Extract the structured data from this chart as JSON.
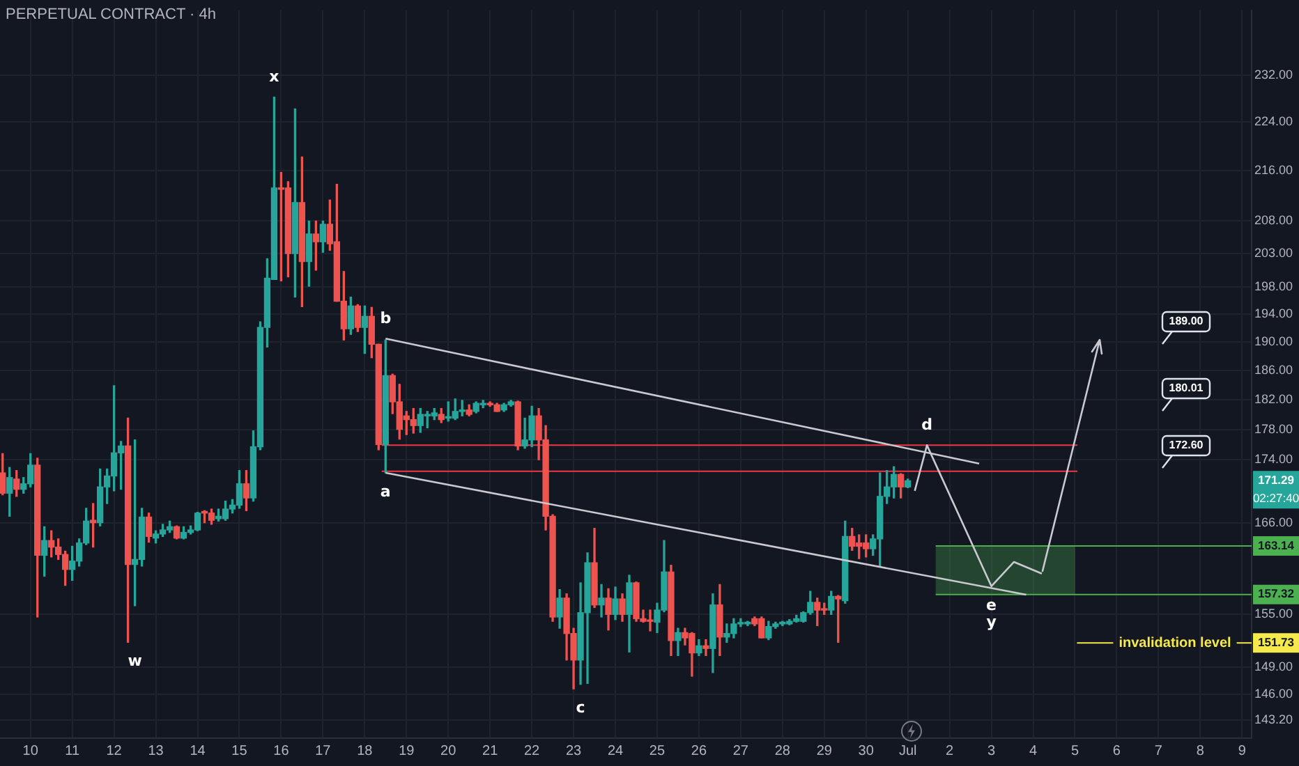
{
  "chart_data": {
    "type": "candlestick",
    "title": "PERPETUAL CONTRACT · 4h",
    "x": [
      "--06-09T08:00",
      "--06-09T12:00",
      "--06-09T16:00",
      "--06-09T20:00",
      "--06-10T00:00",
      "--06-10T04:00",
      "--06-10T08:00",
      "--06-10T12:00",
      "--06-10T16:00",
      "--06-10T20:00",
      "--06-11T00:00",
      "--06-11T04:00",
      "--06-11T08:00",
      "--06-11T12:00",
      "--06-11T16:00",
      "--06-11T20:00",
      "--06-12T00:00",
      "--06-12T04:00",
      "--06-12T08:00",
      "--06-12T12:00",
      "--06-12T16:00",
      "--06-12T20:00",
      "--06-13T00:00",
      "--06-13T04:00",
      "--06-13T08:00",
      "--06-13T12:00",
      "--06-13T16:00",
      "--06-13T20:00",
      "--06-14T00:00",
      "--06-14T04:00",
      "--06-14T08:00",
      "--06-14T12:00",
      "--06-14T16:00",
      "--06-14T20:00",
      "--06-15T00:00",
      "--06-15T04:00",
      "--06-15T08:00",
      "--06-15T12:00",
      "--06-15T16:00",
      "--06-15T20:00",
      "--06-16T00:00",
      "--06-16T04:00",
      "--06-16T08:00",
      "--06-16T12:00",
      "--06-16T16:00",
      "--06-16T20:00",
      "--06-17T00:00",
      "--06-17T04:00",
      "--06-17T08:00",
      "--06-17T12:00",
      "--06-17T16:00",
      "--06-17T20:00",
      "--06-18T00:00",
      "--06-18T04:00",
      "--06-18T08:00",
      "--06-18T12:00",
      "--06-18T16:00",
      "--06-18T20:00",
      "--06-19T00:00",
      "--06-19T04:00",
      "--06-19T08:00",
      "--06-19T12:00",
      "--06-19T16:00",
      "--06-19T20:00",
      "--06-20T00:00",
      "--06-20T04:00",
      "--06-20T08:00",
      "--06-20T12:00",
      "--06-20T16:00",
      "--06-20T20:00",
      "--06-21T00:00",
      "--06-21T04:00",
      "--06-21T08:00",
      "--06-21T12:00",
      "--06-21T16:00",
      "--06-21T20:00",
      "--06-22T00:00",
      "--06-22T04:00",
      "--06-22T08:00",
      "--06-22T12:00",
      "--06-22T16:00",
      "--06-22T20:00",
      "--06-23T00:00",
      "--06-23T04:00",
      "--06-23T08:00",
      "--06-23T12:00",
      "--06-23T16:00",
      "--06-23T20:00",
      "--06-24T00:00",
      "--06-24T04:00",
      "--06-24T08:00",
      "--06-24T12:00",
      "--06-24T16:00",
      "--06-24T20:00",
      "--06-25T00:00",
      "--06-25T04:00",
      "--06-25T08:00",
      "--06-25T12:00",
      "--06-25T16:00",
      "--06-25T20:00",
      "--06-26T00:00",
      "--06-26T04:00",
      "--06-26T08:00",
      "--06-26T12:00",
      "--06-26T16:00",
      "--06-26T20:00",
      "--06-27T00:00",
      "--06-27T04:00",
      "--06-27T08:00",
      "--06-27T12:00",
      "--06-27T16:00",
      "--06-27T20:00",
      "--06-28T00:00",
      "--06-28T04:00",
      "--06-28T08:00",
      "--06-28T12:00",
      "--06-28T16:00",
      "--06-28T20:00",
      "--06-29T00:00",
      "--06-29T04:00",
      "--06-29T08:00",
      "--06-29T12:00",
      "--06-29T16:00",
      "--06-29T20:00",
      "--06-30T00:00",
      "--06-30T04:00",
      "--06-30T08:00",
      "--06-30T12:00",
      "--06-30T16:00",
      "--06-30T20:00",
      "--07-01T00:00"
    ],
    "ohlc": [
      [
        172.3,
        174.8,
        169.5,
        169.7
      ],
      [
        169.7,
        173.0,
        166.8,
        171.7
      ],
      [
        171.5,
        172.6,
        169.3,
        170.2
      ],
      [
        170.2,
        171.7,
        169.7,
        170.9
      ],
      [
        170.9,
        174.8,
        170.5,
        173.3
      ],
      [
        173.3,
        174.2,
        154.7,
        162.0
      ],
      [
        162.0,
        165.5,
        159.5,
        163.8
      ],
      [
        163.8,
        165.0,
        161.8,
        163.0
      ],
      [
        163.0,
        164.0,
        161.5,
        162.1
      ],
      [
        162.1,
        162.5,
        158.4,
        160.3
      ],
      [
        160.3,
        163.1,
        159.0,
        161.3
      ],
      [
        161.3,
        164.0,
        160.7,
        163.5
      ],
      [
        163.5,
        167.8,
        163.3,
        166.2
      ],
      [
        166.3,
        168.4,
        163.0,
        166.0
      ],
      [
        166.0,
        172.8,
        165.6,
        170.5
      ],
      [
        170.5,
        172.8,
        168.4,
        171.9
      ],
      [
        171.9,
        183.9,
        170.0,
        174.9
      ],
      [
        174.9,
        176.4,
        170.2,
        175.8
      ],
      [
        175.8,
        179.5,
        151.8,
        160.9
      ],
      [
        160.9,
        176.6,
        156.0,
        161.5
      ],
      [
        161.5,
        167.8,
        160.7,
        166.7
      ],
      [
        166.7,
        167.2,
        163.6,
        164.3
      ],
      [
        164.1,
        165.0,
        163.5,
        164.6
      ],
      [
        164.6,
        165.8,
        164.3,
        165.1
      ],
      [
        165.1,
        166.2,
        164.8,
        165.5
      ],
      [
        165.5,
        165.6,
        164.0,
        164.1
      ],
      [
        164.1,
        165.5,
        164.0,
        164.8
      ],
      [
        164.8,
        165.6,
        164.6,
        165.1
      ],
      [
        165.1,
        167.3,
        165.0,
        167.2
      ],
      [
        167.4,
        167.5,
        166.0,
        167.2
      ],
      [
        167.2,
        167.7,
        165.8,
        166.3
      ],
      [
        166.5,
        167.7,
        166.2,
        166.8
      ],
      [
        166.5,
        168.7,
        166.3,
        167.7
      ],
      [
        167.7,
        168.9,
        167.2,
        168.2
      ],
      [
        168.2,
        172.6,
        167.8,
        170.9
      ],
      [
        170.9,
        172.6,
        167.5,
        169.1
      ],
      [
        169.1,
        177.8,
        168.7,
        175.7
      ],
      [
        175.7,
        192.9,
        175.3,
        192.1
      ],
      [
        192.1,
        202.2,
        189.3,
        199.3
      ],
      [
        199.1,
        228.2,
        199.1,
        213.2
      ],
      [
        213.2,
        215.7,
        198.9,
        213.0
      ],
      [
        213.2,
        214.2,
        199.5,
        203.0
      ],
      [
        203.0,
        226.2,
        196.5,
        210.9
      ],
      [
        210.9,
        218.2,
        195.1,
        201.8
      ],
      [
        201.8,
        208.0,
        198.1,
        206.0
      ],
      [
        206.0,
        208.0,
        200.5,
        204.8
      ],
      [
        204.8,
        208.0,
        203.2,
        207.5
      ],
      [
        207.5,
        211.3,
        203.5,
        204.5
      ],
      [
        204.8,
        213.8,
        195.9,
        195.9
      ],
      [
        195.9,
        200.3,
        190.3,
        191.9
      ],
      [
        191.9,
        196.5,
        191.1,
        195.2
      ],
      [
        195.2,
        195.4,
        191.5,
        192.1
      ],
      [
        192.1,
        195.2,
        188.4,
        193.7
      ],
      [
        193.7,
        195.0,
        187.8,
        189.7
      ],
      [
        189.7,
        189.7,
        175.3,
        176.0
      ],
      [
        176.0,
        190.3,
        172.3,
        185.3
      ],
      [
        185.3,
        185.5,
        180.1,
        181.7
      ],
      [
        181.7,
        184.1,
        176.7,
        178.0
      ],
      [
        179.8,
        180.4,
        177.3,
        179.3
      ],
      [
        179.3,
        180.8,
        177.5,
        178.5
      ],
      [
        178.5,
        180.8,
        177.6,
        180.0
      ],
      [
        179.8,
        180.4,
        178.2,
        180.0
      ],
      [
        179.8,
        180.8,
        179.3,
        180.2
      ],
      [
        180.0,
        180.8,
        178.9,
        179.3
      ],
      [
        179.5,
        181.7,
        179.1,
        179.7
      ],
      [
        179.5,
        182.1,
        179.3,
        180.4
      ],
      [
        180.4,
        181.9,
        179.8,
        180.6
      ],
      [
        180.6,
        181.3,
        179.8,
        180.0
      ],
      [
        180.4,
        181.7,
        180.2,
        181.5
      ],
      [
        181.3,
        181.9,
        180.9,
        181.5
      ],
      [
        181.5,
        181.7,
        181.1,
        181.3
      ],
      [
        181.3,
        181.5,
        180.4,
        180.4
      ],
      [
        180.6,
        181.5,
        180.4,
        181.3
      ],
      [
        181.3,
        181.9,
        181.1,
        181.7
      ],
      [
        181.7,
        181.8,
        175.3,
        175.8
      ],
      [
        175.8,
        179.5,
        175.5,
        176.6
      ],
      [
        176.6,
        181.1,
        175.7,
        179.8
      ],
      [
        179.8,
        180.8,
        174.0,
        176.6
      ],
      [
        176.6,
        178.5,
        165.1,
        166.8
      ],
      [
        166.8,
        167.0,
        154.2,
        154.7
      ],
      [
        154.7,
        157.9,
        153.4,
        156.9
      ],
      [
        156.9,
        157.4,
        149.8,
        152.8
      ],
      [
        152.8,
        153.4,
        146.6,
        149.8
      ],
      [
        149.8,
        158.7,
        147.1,
        155.2
      ],
      [
        155.2,
        162.3,
        147.2,
        161.1
      ],
      [
        161.1,
        165.3,
        155.8,
        156.1
      ],
      [
        156.1,
        158.5,
        154.7,
        156.9
      ],
      [
        156.9,
        158.0,
        153.2,
        155.0
      ],
      [
        155.0,
        158.2,
        154.4,
        156.8
      ],
      [
        156.8,
        157.4,
        154.2,
        155.0
      ],
      [
        155.0,
        159.6,
        150.7,
        158.7
      ],
      [
        158.7,
        158.8,
        154.2,
        154.5
      ],
      [
        154.5,
        155.5,
        154.1,
        154.2
      ],
      [
        154.3,
        155.5,
        153.1,
        154.2
      ],
      [
        154.1,
        156.3,
        152.9,
        155.5
      ],
      [
        155.5,
        163.8,
        155.3,
        160.0
      ],
      [
        160.0,
        160.8,
        150.3,
        152.0
      ],
      [
        152.0,
        153.4,
        150.3,
        152.9
      ],
      [
        152.9,
        153.4,
        151.5,
        152.3
      ],
      [
        152.8,
        152.9,
        148.0,
        150.6
      ],
      [
        150.6,
        152.1,
        150.3,
        151.4
      ],
      [
        151.4,
        152.1,
        150.3,
        151.1
      ],
      [
        151.1,
        157.4,
        148.4,
        156.1
      ],
      [
        156.1,
        158.5,
        150.3,
        152.4
      ],
      [
        152.4,
        153.9,
        151.8,
        152.8
      ],
      [
        152.8,
        154.5,
        152.3,
        153.9
      ],
      [
        153.9,
        154.5,
        153.6,
        154.0
      ],
      [
        153.9,
        154.2,
        153.7,
        154.1
      ],
      [
        154.5,
        154.7,
        153.7,
        153.9
      ],
      [
        154.5,
        154.7,
        152.3,
        152.3
      ],
      [
        152.3,
        154.2,
        152.1,
        153.6
      ],
      [
        153.6,
        154.1,
        153.4,
        153.9
      ],
      [
        153.9,
        154.2,
        153.7,
        154.1
      ],
      [
        153.9,
        154.4,
        153.8,
        154.2
      ],
      [
        154.2,
        154.9,
        154.1,
        154.5
      ],
      [
        154.2,
        155.3,
        154.1,
        155.2
      ],
      [
        155.2,
        157.7,
        155.0,
        156.4
      ],
      [
        156.4,
        156.9,
        153.7,
        155.5
      ],
      [
        155.6,
        156.3,
        155.0,
        155.5
      ],
      [
        155.5,
        157.7,
        155.0,
        157.1
      ],
      [
        157.1,
        157.2,
        151.8,
        156.8
      ],
      [
        156.6,
        166.2,
        156.3,
        164.3
      ],
      [
        164.3,
        165.3,
        162.6,
        163.1
      ],
      [
        163.5,
        164.5,
        161.6,
        163.1
      ],
      [
        163.5,
        164.5,
        161.8,
        162.8
      ],
      [
        162.8,
        164.5,
        162.0,
        164.0
      ],
      [
        164.0,
        172.3,
        160.7,
        169.3
      ],
      [
        169.3,
        172.6,
        168.4,
        170.5
      ],
      [
        170.5,
        173.1,
        169.1,
        172.1
      ],
      [
        172.1,
        172.2,
        169.1,
        170.5
      ],
      [
        170.5,
        171.5,
        170.4,
        171.29
      ]
    ],
    "series": [
      {
        "type": "line",
        "color": "#c8cad0",
        "x": [
          "--06-18T12:00",
          "--07-02T17:00"
        ],
        "values": [
          190.5,
          173.5
        ]
      },
      {
        "type": "line",
        "color": "#c8cad0",
        "x": [
          "--06-18T12:00",
          "--07-03T20:00"
        ],
        "values": [
          172.3,
          157.3
        ]
      },
      {
        "type": "line",
        "color": "#c8cad0",
        "x": [
          "--07-01T04:00",
          "--07-01T11:00",
          "--07-03T00:00",
          "--07-03T13:00",
          "--07-04T05:00"
        ],
        "values": [
          170.0,
          175.9,
          158.3,
          161.2,
          159.8
        ]
      }
    ],
    "marker": "none",
    "line_style": "solid",
    "log": true,
    "grid": true,
    "xlim": [
      "--06-09T06:30",
      "--07-09T05:30"
    ],
    "xticks": [
      {
        "value": "--06-10",
        "label": "10"
      },
      {
        "value": "--06-11",
        "label": "11"
      },
      {
        "value": "--06-12",
        "label": "12"
      },
      {
        "value": "--06-13",
        "label": "13"
      },
      {
        "value": "--06-14",
        "label": "14"
      },
      {
        "value": "--06-15",
        "label": "15"
      },
      {
        "value": "--06-16",
        "label": "16"
      },
      {
        "value": "--06-17",
        "label": "17"
      },
      {
        "value": "--06-18",
        "label": "18"
      },
      {
        "value": "--06-19",
        "label": "19"
      },
      {
        "value": "--06-20",
        "label": "20"
      },
      {
        "value": "--06-21",
        "label": "21"
      },
      {
        "value": "--06-22",
        "label": "22"
      },
      {
        "value": "--06-23",
        "label": "23"
      },
      {
        "value": "--06-24",
        "label": "24"
      },
      {
        "value": "--06-25",
        "label": "25"
      },
      {
        "value": "--06-26",
        "label": "26"
      },
      {
        "value": "--06-27",
        "label": "27"
      },
      {
        "value": "--06-28",
        "label": "28"
      },
      {
        "value": "--06-29",
        "label": "29"
      },
      {
        "value": "--06-30",
        "label": "30"
      },
      {
        "value": "--07-01",
        "label": "Jul"
      },
      {
        "value": "--07-02",
        "label": "2"
      },
      {
        "value": "--07-03",
        "label": "3"
      },
      {
        "value": "--07-04",
        "label": "4"
      },
      {
        "value": "--07-05",
        "label": "5"
      },
      {
        "value": "--07-06",
        "label": "6"
      },
      {
        "value": "--07-07",
        "label": "7"
      },
      {
        "value": "--07-08",
        "label": "8"
      },
      {
        "value": "--07-09",
        "label": "9"
      }
    ],
    "ylim": [
      141.3,
      243.5
    ],
    "yticks": [
      {
        "value": 143.2,
        "label": "143.20"
      },
      {
        "value": 146,
        "label": "146.00"
      },
      {
        "value": 149,
        "label": "149.00"
      },
      {
        "value": 155,
        "label": "155.00"
      },
      {
        "value": 166,
        "label": "166.00"
      },
      {
        "value": 174,
        "label": "174.00"
      },
      {
        "value": 178,
        "label": "178.00"
      },
      {
        "value": 182,
        "label": "182.00"
      },
      {
        "value": 186,
        "label": "186.00"
      },
      {
        "value": 190,
        "label": "190.00"
      },
      {
        "value": 194,
        "label": "194.00"
      },
      {
        "value": 198,
        "label": "198.00"
      },
      {
        "value": 203,
        "label": "203.00"
      },
      {
        "value": 208,
        "label": "208.00"
      },
      {
        "value": 216,
        "label": "216.00"
      },
      {
        "value": 224,
        "label": "224.00"
      },
      {
        "value": 232,
        "label": "232.00"
      }
    ],
    "ref_lines": [
      {
        "axis": "y",
        "value": 175.9,
        "color": "#f23645"
      },
      {
        "axis": "y",
        "value": 172.5,
        "color": "#f23645"
      },
      {
        "axis": "y",
        "value": 151.73,
        "label": "invalidation level",
        "color": "#f5e94b"
      }
    ],
    "bands": [
      {
        "axis": "y",
        "from": 157.32,
        "to": 163.14,
        "color": "#4caf50"
      }
    ],
    "annotations": [
      {
        "text": "x",
        "x": "--06-15T20:00",
        "y": 228.2
      },
      {
        "text": "w",
        "x": "--06-12T12:00",
        "y": 151.8
      },
      {
        "text": "b",
        "x": "--06-18T12:00",
        "y": 190.5
      },
      {
        "text": "a",
        "x": "--06-18T12:00",
        "y": 172.3
      },
      {
        "text": "c",
        "x": "--06-23T04:00",
        "y": 146.6
      },
      {
        "text": "d",
        "x": "--07-01T11:00",
        "y": 175.9
      },
      {
        "text": "e",
        "x": "--07-03T00:00",
        "y": 158.3
      },
      {
        "text": "y",
        "x": "--07-03T00:00",
        "y": 158.3
      },
      {
        "text": "171.29",
        "y": 171.29
      },
      "02:27:40",
      {
        "text": "163.14",
        "y": 163.14
      },
      {
        "text": "157.32",
        "y": 157.32
      },
      {
        "text": "151.73",
        "y": 151.73
      },
      "189.00",
      "180.01",
      "172.60"
    ]
  }
}
